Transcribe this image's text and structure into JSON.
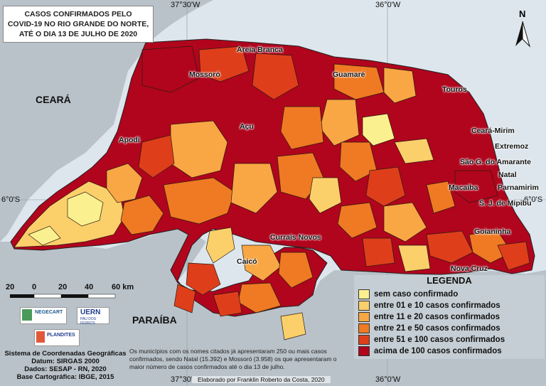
{
  "title_lines": [
    "CASOS CONFIRMADOS PELO",
    "COVID-19 NO RIO GRANDE DO NORTE,",
    "ATÉ O DIA 13 DE JULHO DE 2020"
  ],
  "coords": {
    "top_left": "37°30'W",
    "top_right": "36°0'W",
    "bottom_left": "37°30'W",
    "bottom_right": "36°0'W",
    "left_lat": "6°0'S",
    "right_lat": "6°0'S"
  },
  "states": {
    "ceara": "CEARÁ",
    "paraiba": "PARAÍBA"
  },
  "north_label": "N",
  "cities": {
    "areia_branca": "Areia Branca",
    "mossoro": "Mossoró",
    "guamare": "Guamaré",
    "touros": "Touros",
    "apodi": "Apodi",
    "acu": "Açu",
    "ceara_mirim": "Ceará-Mirim",
    "extremoz": "Extremoz",
    "sao_goncalo": "São G. do Amarante",
    "natal": "Natal",
    "macaiba": "Macaíba",
    "parnamirim": "Parnamirim",
    "sjm": "S. J. de Mipibu",
    "currais_novos": "Currais Novos",
    "goianinha": "Goianinha",
    "caico": "Caicó",
    "nova_cruz": "Nova Cruz"
  },
  "scale": {
    "labels": [
      "20",
      "0",
      "20",
      "40",
      "60 km"
    ]
  },
  "logos": {
    "negecart": "NEGECART",
    "uern": "UERN",
    "uern_sub": "PAU DOS FERROS",
    "plandites": "PLANDITES"
  },
  "legend": {
    "title": "LEGENDA",
    "items": [
      {
        "label": "sem caso confirmado",
        "color": "#fbf08f"
      },
      {
        "label": "entre 01 e 10 casos confirmados",
        "color": "#fbd06b"
      },
      {
        "label": "entre 11 e 20 casos confirmados",
        "color": "#f8a744"
      },
      {
        "label": "entre 21 e 50 casos confirmados",
        "color": "#ef7a23"
      },
      {
        "label": "entre 51 e 100 casos confirmados",
        "color": "#df3e1b"
      },
      {
        "label": "acima de 100 casos confirmados",
        "color": "#b0051d"
      }
    ]
  },
  "credits": [
    "Sistema de Coordenadas Geográficas",
    "Datum: SIRGAS 2000",
    "Dados: SESAP - RN, 2020",
    "Base Cartográfica: IBGE, 2015"
  ],
  "footnote": "Os municípios com os nomes citados já apresentaram 250 ou mais casos confirmados, sendo Natal (15.392) e Mossoró (3.958) os que apresentaram o maior número de casos confirmados até o dia 13 de julho.",
  "author": "Elaborado por Franklin Roberto da Costa, 2020"
}
